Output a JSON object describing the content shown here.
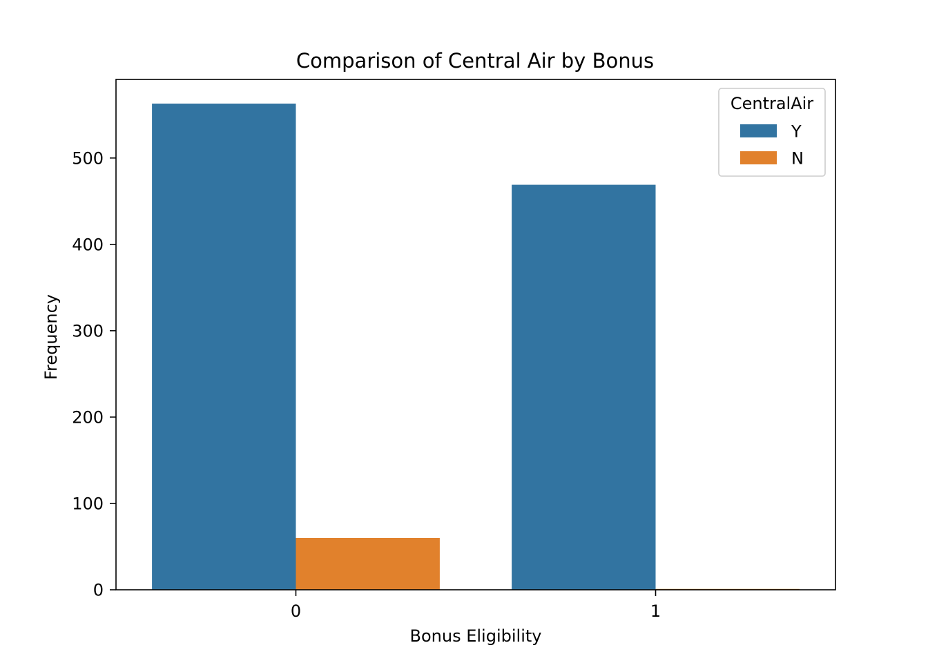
{
  "chart_data": {
    "type": "bar",
    "title": "Comparison of Central Air by Bonus",
    "xlabel": "Bonus Eligibility",
    "ylabel": "Frequency",
    "categories": [
      "0",
      "1"
    ],
    "series": [
      {
        "name": "Y",
        "values": [
          563,
          469
        ],
        "color": "#3274a1"
      },
      {
        "name": "N",
        "values": [
          60,
          1
        ],
        "color": "#e1812c"
      }
    ],
    "ylim": [
      0,
      591
    ],
    "yticks": [
      0,
      100,
      200,
      300,
      400,
      500
    ],
    "grid": false,
    "legend": {
      "title": "CentralAir",
      "placement": "top-right"
    }
  }
}
